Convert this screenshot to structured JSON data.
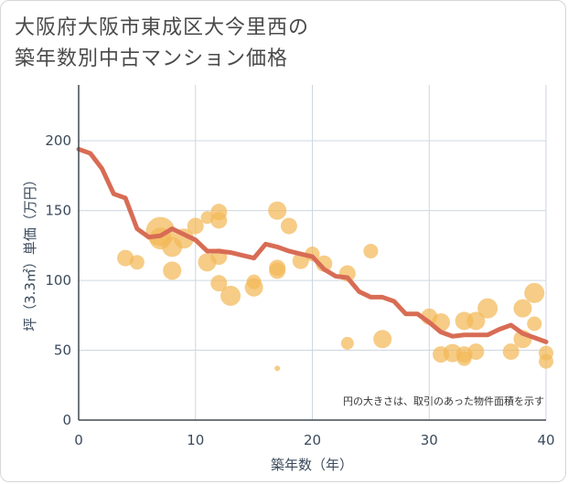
{
  "title": "大阪府大阪市東成区大今里西の\n築年数別中古マンション価格",
  "chart_data": {
    "type": "scatter",
    "xlabel": "築年数（年）",
    "ylabel": "坪（3.3㎡）単価（万円）",
    "xlim": [
      0,
      40
    ],
    "ylim": [
      0,
      240
    ],
    "xticks": [
      0,
      10,
      20,
      30,
      40
    ],
    "yticks": [
      0,
      50,
      100,
      150,
      200
    ],
    "grid": true,
    "note": "円の大きさは、取引のあった物件面積を示す",
    "colors": {
      "bubble": "#f3b957",
      "line": "#d86c55",
      "grid": "#cdd6e0",
      "axis": "#404850"
    },
    "series": [
      {
        "kind": "bubble",
        "points": [
          {
            "x": 4,
            "y": 116,
            "s": 9
          },
          {
            "x": 5,
            "y": 113,
            "s": 8
          },
          {
            "x": 7,
            "y": 135,
            "s": 16
          },
          {
            "x": 7,
            "y": 130,
            "s": 12
          },
          {
            "x": 8,
            "y": 124,
            "s": 11
          },
          {
            "x": 8,
            "y": 107,
            "s": 10
          },
          {
            "x": 9,
            "y": 130,
            "s": 11
          },
          {
            "x": 10,
            "y": 139,
            "s": 9
          },
          {
            "x": 11,
            "y": 145,
            "s": 7
          },
          {
            "x": 11,
            "y": 113,
            "s": 10
          },
          {
            "x": 12,
            "y": 149,
            "s": 9
          },
          {
            "x": 12,
            "y": 143,
            "s": 9
          },
          {
            "x": 12,
            "y": 117,
            "s": 9
          },
          {
            "x": 12,
            "y": 98,
            "s": 9
          },
          {
            "x": 13,
            "y": 89,
            "s": 11
          },
          {
            "x": 15,
            "y": 99,
            "s": 8
          },
          {
            "x": 15,
            "y": 95,
            "s": 10
          },
          {
            "x": 17,
            "y": 150,
            "s": 10
          },
          {
            "x": 17,
            "y": 109,
            "s": 9
          },
          {
            "x": 17,
            "y": 107,
            "s": 9
          },
          {
            "x": 17,
            "y": 37,
            "s": 3
          },
          {
            "x": 18,
            "y": 139,
            "s": 9
          },
          {
            "x": 19,
            "y": 114,
            "s": 9
          },
          {
            "x": 20,
            "y": 119,
            "s": 8
          },
          {
            "x": 21,
            "y": 112,
            "s": 9
          },
          {
            "x": 23,
            "y": 105,
            "s": 9
          },
          {
            "x": 23,
            "y": 55,
            "s": 7
          },
          {
            "x": 25,
            "y": 121,
            "s": 8
          },
          {
            "x": 26,
            "y": 58,
            "s": 10
          },
          {
            "x": 30,
            "y": 74,
            "s": 9
          },
          {
            "x": 31,
            "y": 70,
            "s": 10
          },
          {
            "x": 31,
            "y": 47,
            "s": 9
          },
          {
            "x": 32,
            "y": 48,
            "s": 10
          },
          {
            "x": 33,
            "y": 71,
            "s": 10
          },
          {
            "x": 33,
            "y": 47,
            "s": 9
          },
          {
            "x": 33,
            "y": 44,
            "s": 8
          },
          {
            "x": 34,
            "y": 71,
            "s": 10
          },
          {
            "x": 34,
            "y": 49,
            "s": 9
          },
          {
            "x": 35,
            "y": 80,
            "s": 11
          },
          {
            "x": 37,
            "y": 49,
            "s": 9
          },
          {
            "x": 38,
            "y": 80,
            "s": 10
          },
          {
            "x": 38,
            "y": 58,
            "s": 10
          },
          {
            "x": 39,
            "y": 91,
            "s": 11
          },
          {
            "x": 39,
            "y": 69,
            "s": 8
          },
          {
            "x": 40,
            "y": 48,
            "s": 8
          },
          {
            "x": 40,
            "y": 42,
            "s": 8
          }
        ]
      },
      {
        "kind": "line",
        "x": [
          0,
          1,
          2,
          3,
          4,
          5,
          6,
          7,
          8,
          9,
          10,
          11,
          12,
          13,
          14,
          15,
          16,
          17,
          18,
          19,
          20,
          21,
          22,
          23,
          24,
          25,
          26,
          27,
          28,
          29,
          30,
          31,
          32,
          33,
          34,
          35,
          36,
          37,
          38,
          39,
          40
        ],
        "y": [
          194,
          191,
          180,
          162,
          159,
          137,
          131,
          132,
          137,
          133,
          129,
          121,
          121,
          120,
          118,
          116,
          126,
          124,
          121,
          119,
          117,
          108,
          103,
          102,
          92,
          88,
          88,
          85,
          76,
          76,
          70,
          63,
          60,
          61,
          61,
          61,
          65,
          68,
          62,
          59,
          56
        ]
      }
    ]
  }
}
